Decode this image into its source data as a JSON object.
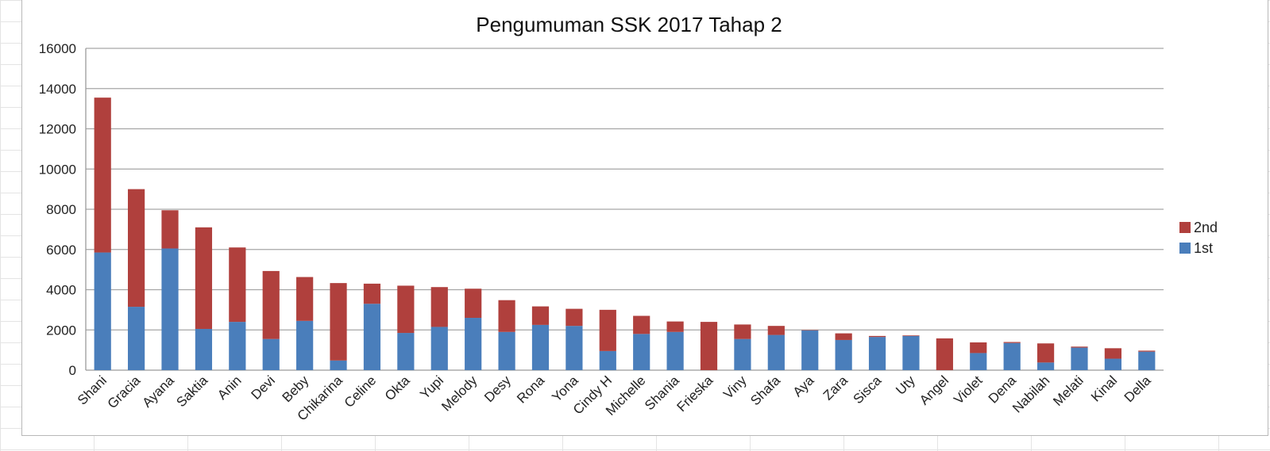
{
  "chart_data": {
    "type": "bar",
    "stacked": true,
    "title": "Pengumuman SSK 2017 Tahap 2",
    "xlabel": "",
    "ylabel": "",
    "ylim": [
      0,
      16000
    ],
    "yticks": [
      0,
      2000,
      4000,
      6000,
      8000,
      10000,
      12000,
      14000,
      16000
    ],
    "grid": true,
    "legend": "right",
    "categories": [
      "Shani",
      "Gracia",
      "Ayana",
      "Saktia",
      "Anin",
      "Devi",
      "Beby",
      "Chikarina",
      "Celine",
      "Okta",
      "Yupi",
      "Melody",
      "Desy",
      "Rona",
      "Yona",
      "Cindy H",
      "Michelle",
      "Shania",
      "Frieska",
      "Viny",
      "Shafa",
      "Aya",
      "Zara",
      "Sisca",
      "Uty",
      "Angel",
      "Violet",
      "Dena",
      "Nabilah",
      "Melati",
      "Kinal",
      "Della"
    ],
    "series": [
      {
        "name": "1st",
        "color": "#4a7ebb",
        "values": [
          5850,
          3150,
          6050,
          2050,
          2400,
          1550,
          2450,
          480,
          3300,
          1850,
          2150,
          2600,
          1900,
          2250,
          2200,
          950,
          1800,
          1900,
          0,
          1550,
          1750,
          1980,
          1500,
          1650,
          1700,
          0,
          850,
          1350,
          380,
          1120,
          570,
          920
        ]
      },
      {
        "name": "2nd",
        "color": "#b0403d",
        "values": [
          7700,
          5850,
          1900,
          5050,
          3700,
          3380,
          2180,
          3850,
          1000,
          2350,
          1980,
          1450,
          1580,
          920,
          850,
          2050,
          900,
          520,
          2400,
          720,
          450,
          20,
          330,
          50,
          30,
          1580,
          530,
          50,
          950,
          50,
          520,
          50
        ]
      }
    ]
  }
}
